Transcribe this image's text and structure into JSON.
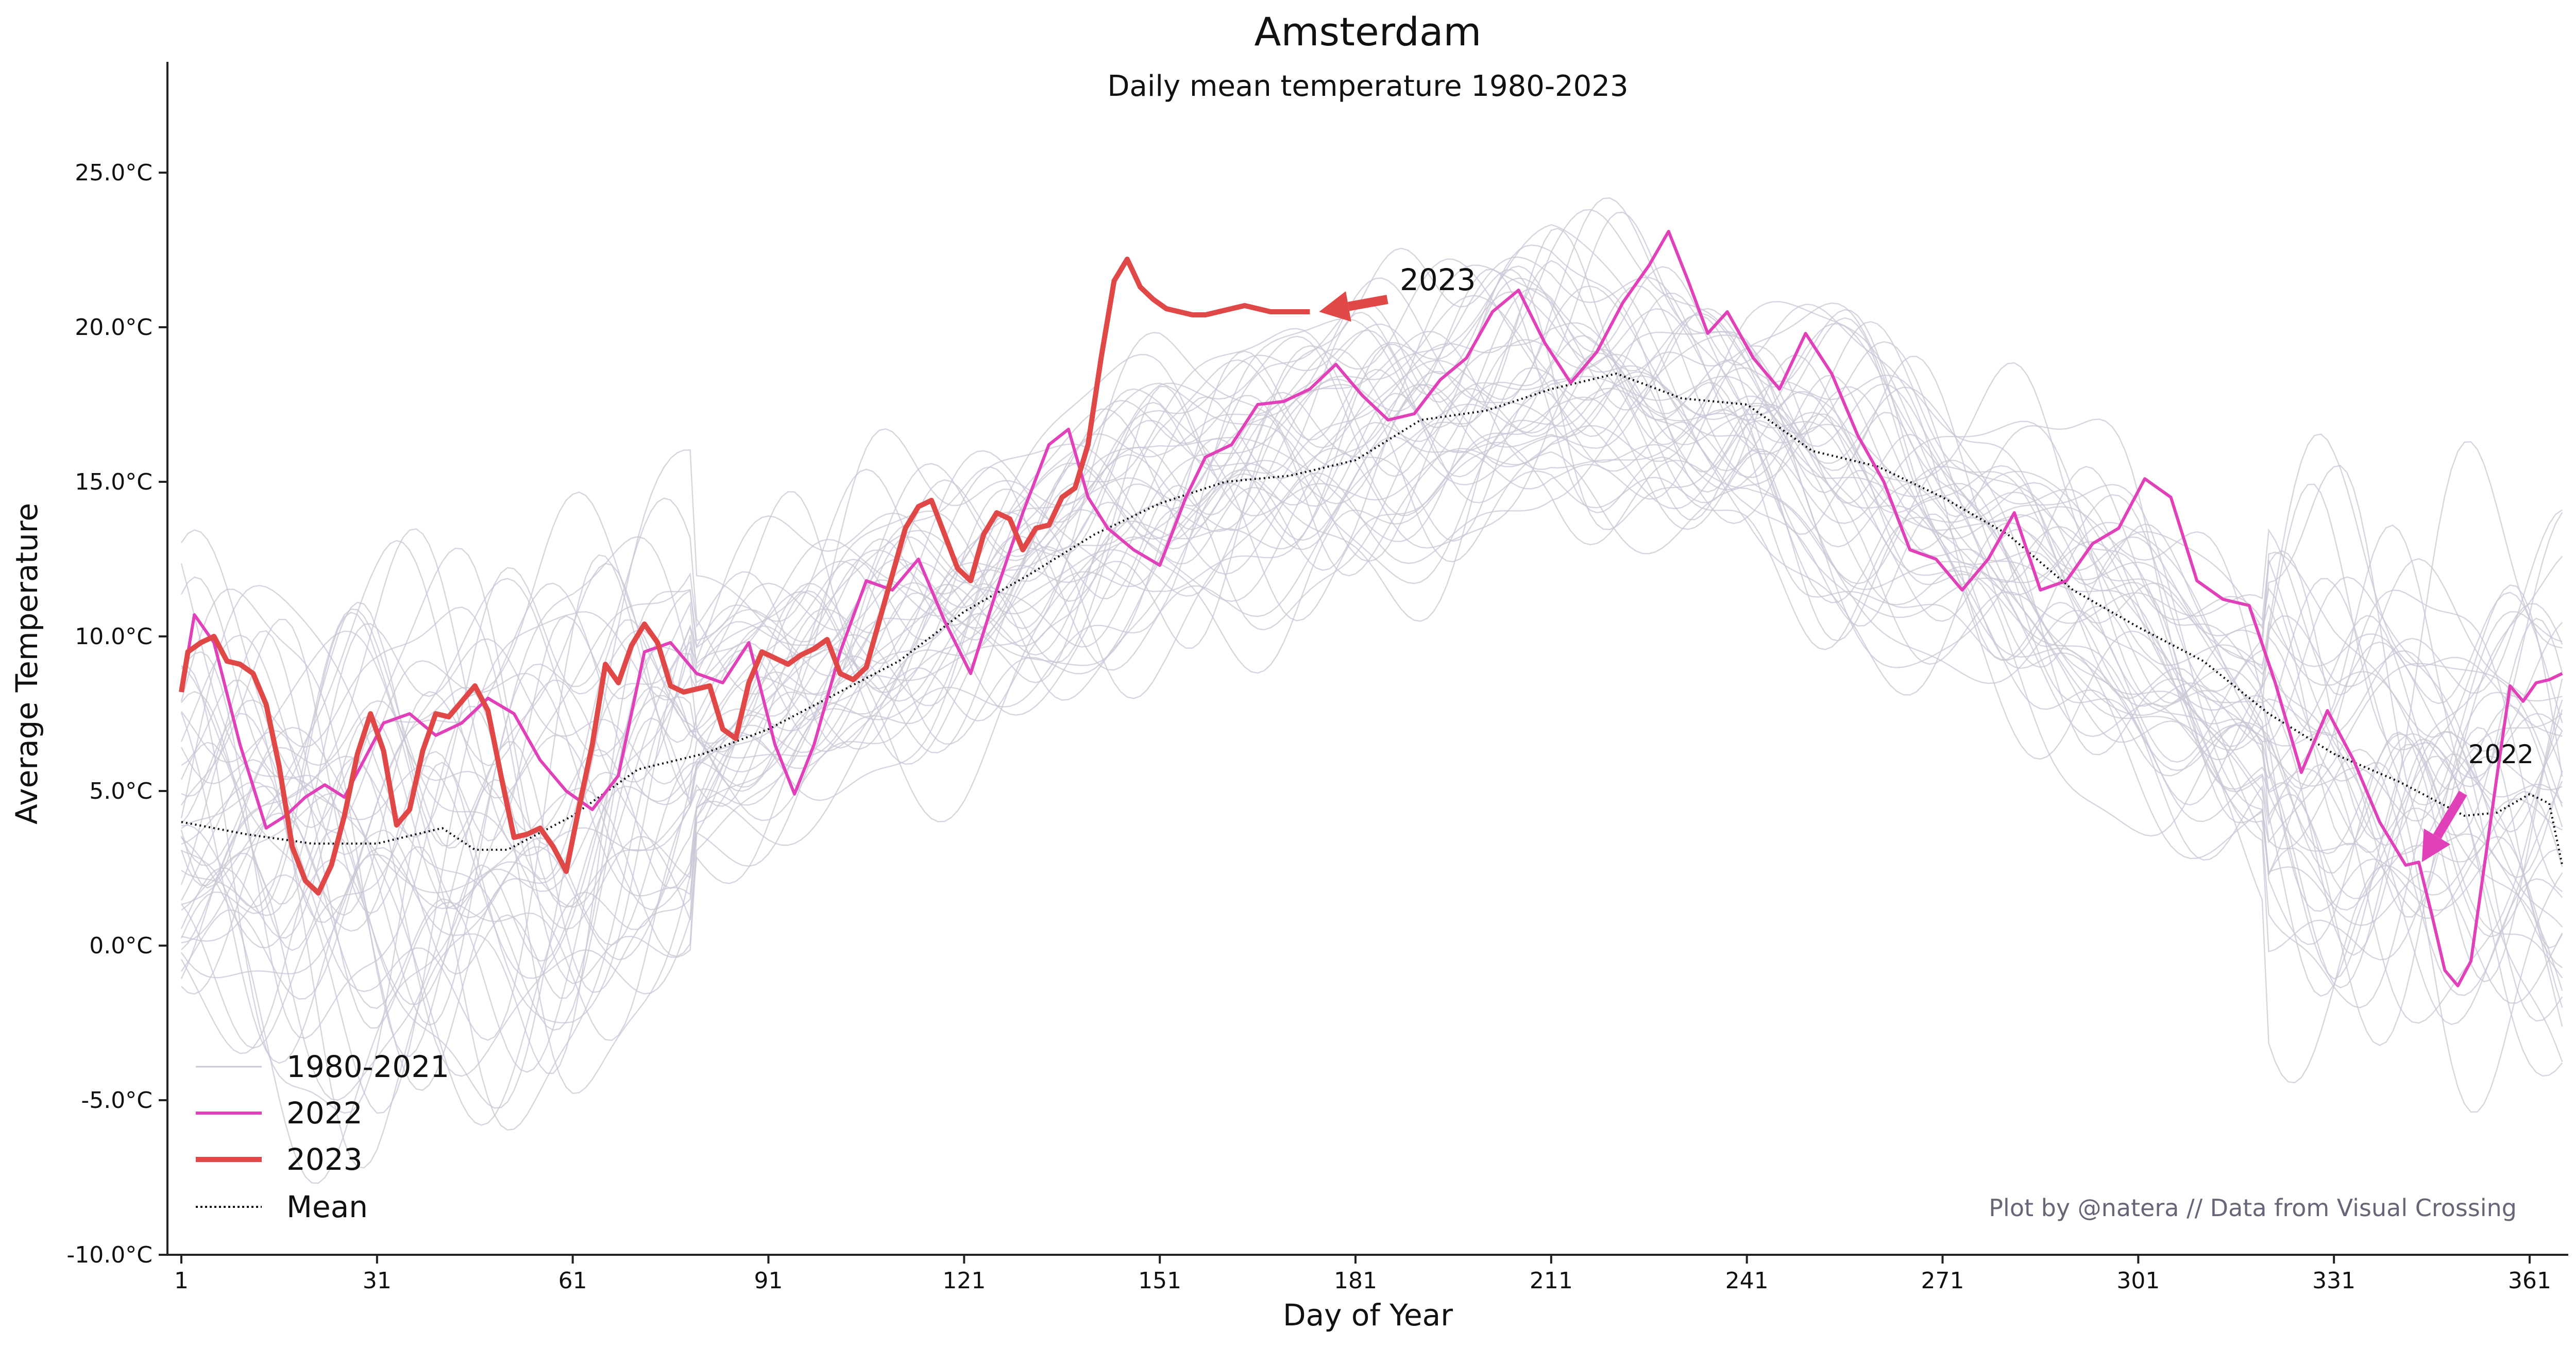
{
  "chart_data": {
    "type": "line",
    "title": "Amsterdam",
    "subtitle": "Daily mean temperature 1980-2023",
    "xlabel": "Day of Year",
    "ylabel": "Average Temperature",
    "xlim": [
      1,
      366
    ],
    "ylim": [
      -10,
      28.5
    ],
    "x_ticks": [
      1,
      31,
      61,
      91,
      121,
      151,
      181,
      211,
      241,
      271,
      301,
      331,
      361
    ],
    "y_ticks": [
      -10,
      -5,
      0,
      5,
      10,
      15,
      20,
      25
    ],
    "y_tick_labels": [
      "-10.0°C",
      "-5.0°C",
      "0.0°C",
      "5.0°C",
      "10.0°C",
      "15.0°C",
      "20.0°C",
      "25.0°C"
    ],
    "grid": false,
    "legend_position": "lower-left",
    "credit": "Plot by @natera // Data from Visual Crossing",
    "colors": {
      "history": "#c9c6d6",
      "y2022": "#e040b8",
      "y2023": "#e04848",
      "mean": "#111111"
    },
    "series": [
      {
        "name": "1980-2021",
        "envelope_note": "",
        "seasonal_cycle": {
          "x": [
            1,
            31,
            61,
            91,
            121,
            151,
            181,
            211,
            241,
            271,
            301,
            331,
            366
          ],
          "values": [
            3.5,
            3.2,
            4.8,
            7.8,
            10.8,
            14.5,
            16.5,
            18.3,
            16.8,
            13.5,
            9.8,
            5.8,
            4.0
          ]
        }
      },
      {
        "name": "2022",
        "x": [
          1,
          3,
          6,
          10,
          14,
          17,
          20,
          23,
          26,
          29,
          32,
          36,
          40,
          44,
          48,
          52,
          56,
          60,
          64,
          68,
          72,
          76,
          80,
          84,
          88,
          92,
          95,
          98,
          102,
          106,
          110,
          114,
          118,
          122,
          126,
          130,
          134,
          137,
          140,
          143,
          147,
          151,
          155,
          158,
          162,
          166,
          170,
          174,
          178,
          182,
          186,
          190,
          194,
          198,
          202,
          206,
          210,
          214,
          218,
          222,
          226,
          229,
          232,
          235,
          238,
          242,
          246,
          250,
          254,
          258,
          262,
          266,
          270,
          274,
          278,
          282,
          286,
          290,
          294,
          298,
          302,
          306,
          310,
          314,
          318,
          322,
          326,
          330,
          334,
          338,
          342,
          344,
          346,
          348,
          350,
          352,
          354,
          356,
          358,
          360,
          362,
          364,
          366
        ],
        "values": [
          8.2,
          10.7,
          9.8,
          6.5,
          3.8,
          4.2,
          4.8,
          5.2,
          4.8,
          6.0,
          7.2,
          7.5,
          6.8,
          7.2,
          8.0,
          7.5,
          6.0,
          5.0,
          4.4,
          5.5,
          9.5,
          9.8,
          8.8,
          8.5,
          9.8,
          6.5,
          4.9,
          6.5,
          9.5,
          11.8,
          11.5,
          12.5,
          10.5,
          8.8,
          11.5,
          14.0,
          16.2,
          16.7,
          14.5,
          13.5,
          12.8,
          12.3,
          14.5,
          15.8,
          16.2,
          17.5,
          17.6,
          18.0,
          18.8,
          17.8,
          17.0,
          17.2,
          18.3,
          19.0,
          20.5,
          21.2,
          19.5,
          18.2,
          19.2,
          20.8,
          22.0,
          23.1,
          21.5,
          19.8,
          20.5,
          19.0,
          18.0,
          19.8,
          18.5,
          16.5,
          15.0,
          12.8,
          12.5,
          11.5,
          12.5,
          14.0,
          11.5,
          11.8,
          13.0,
          13.5,
          15.1,
          14.5,
          11.8,
          11.2,
          11.0,
          8.5,
          5.6,
          7.6,
          6.0,
          4.0,
          2.6,
          2.7,
          1.0,
          -0.8,
          -1.3,
          -0.5,
          2.5,
          5.5,
          8.4,
          7.9,
          8.5,
          8.6,
          8.8
        ]
      },
      {
        "name": "2023",
        "x": [
          1,
          2,
          4,
          6,
          8,
          10,
          12,
          14,
          16,
          18,
          20,
          22,
          24,
          26,
          28,
          30,
          32,
          34,
          36,
          38,
          40,
          42,
          44,
          46,
          48,
          50,
          52,
          54,
          56,
          58,
          60,
          62,
          64,
          66,
          68,
          70,
          72,
          74,
          76,
          78,
          80,
          82,
          84,
          86,
          88,
          90,
          92,
          94,
          96,
          98,
          100,
          102,
          104,
          106,
          108,
          110,
          112,
          114,
          116,
          118,
          120,
          122,
          124,
          126,
          128,
          130,
          132,
          134,
          136,
          138,
          140,
          142,
          144,
          146,
          148,
          150,
          152,
          154,
          156,
          158,
          160,
          162,
          164,
          166,
          168,
          170,
          172,
          174
        ],
        "values": [
          8.2,
          9.5,
          9.8,
          10.0,
          9.2,
          9.1,
          8.8,
          7.8,
          5.8,
          3.2,
          2.1,
          1.7,
          2.6,
          4.2,
          6.2,
          7.5,
          6.3,
          3.9,
          4.4,
          6.3,
          7.5,
          7.4,
          7.9,
          8.4,
          7.6,
          5.5,
          3.5,
          3.6,
          3.8,
          3.2,
          2.4,
          4.5,
          6.5,
          9.1,
          8.5,
          9.7,
          10.4,
          9.8,
          8.4,
          8.2,
          8.3,
          8.4,
          7.0,
          6.7,
          8.5,
          9.5,
          9.3,
          9.1,
          9.4,
          9.6,
          9.9,
          8.8,
          8.6,
          9.0,
          10.5,
          12.0,
          13.5,
          14.2,
          14.4,
          13.3,
          12.2,
          11.8,
          13.3,
          14.0,
          13.8,
          12.8,
          13.5,
          13.6,
          14.5,
          14.8,
          16.2,
          19.0,
          21.5,
          22.2,
          21.3,
          20.9,
          20.6,
          20.5,
          20.4,
          20.4,
          20.5,
          20.6,
          20.7,
          20.6,
          20.5,
          20.5,
          20.5,
          20.5
        ]
      },
      {
        "name": "Mean",
        "x": [
          1,
          11,
          21,
          31,
          41,
          46,
          51,
          61,
          71,
          81,
          91,
          101,
          111,
          121,
          131,
          141,
          151,
          161,
          171,
          181,
          191,
          201,
          211,
          221,
          231,
          241,
          251,
          261,
          271,
          281,
          291,
          301,
          311,
          321,
          331,
          341,
          351,
          356,
          361,
          364,
          366
        ],
        "values": [
          4.0,
          3.6,
          3.3,
          3.3,
          3.8,
          3.1,
          3.1,
          4.2,
          5.7,
          6.2,
          7.0,
          8.1,
          9.2,
          10.8,
          12.0,
          13.3,
          14.3,
          15.0,
          15.2,
          15.7,
          17.0,
          17.3,
          18.0,
          18.5,
          17.7,
          17.5,
          16.0,
          15.5,
          14.5,
          13.3,
          11.5,
          10.3,
          9.2,
          7.5,
          6.2,
          5.3,
          4.2,
          4.3,
          4.9,
          4.6,
          2.6
        ]
      }
    ],
    "annotations": [
      {
        "text": "2023",
        "series": "2023",
        "arrow_to": [
          174,
          20.5
        ],
        "text_at": [
          187,
          21.2
        ]
      },
      {
        "text": "2022",
        "series": "2022",
        "arrow_to": [
          344,
          2.6
        ],
        "text_at": [
          350,
          5.6
        ]
      }
    ]
  }
}
